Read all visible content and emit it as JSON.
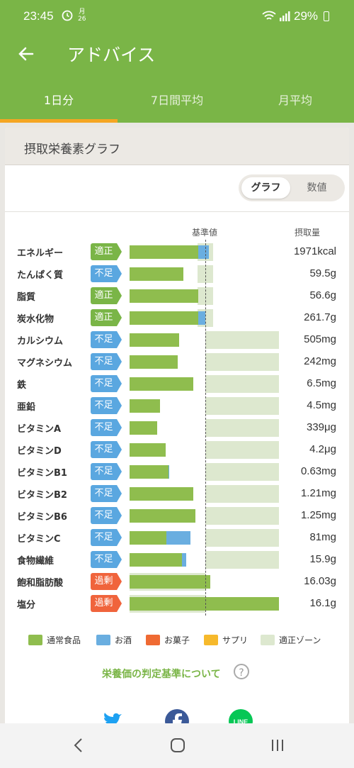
{
  "status": {
    "time": "23:45",
    "calendar_top": "月",
    "calendar_day": "26",
    "battery": "29%"
  },
  "appbar": {
    "title": "アドバイス"
  },
  "tabs": [
    {
      "label": "1日分",
      "active": true
    },
    {
      "label": "7日間平均",
      "active": false
    },
    {
      "label": "月平均",
      "active": false
    }
  ],
  "card": {
    "title": "摂取栄養素グラフ",
    "toggle": {
      "graph": "グラフ",
      "numeric": "数値",
      "selected": "グラフ"
    },
    "header": {
      "reference": "基準値",
      "intake": "摂取量"
    }
  },
  "nutrients": [
    {
      "name": "エネルギー",
      "status": "適正",
      "value": "1971kcal",
      "green": 0.91,
      "blue": 0.14,
      "zone": [
        0.9,
        1.1
      ]
    },
    {
      "name": "たんぱく質",
      "status": "不足",
      "value": "59.5g",
      "green": 0.71,
      "blue": 0,
      "zone": [
        0.9,
        1.1
      ]
    },
    {
      "name": "脂質",
      "status": "適正",
      "value": "56.6g",
      "green": 0.91,
      "blue": 0,
      "zone": [
        0.9,
        1.1
      ]
    },
    {
      "name": "炭水化物",
      "status": "適正",
      "value": "261.7g",
      "green": 0.91,
      "blue": 0.09,
      "zone": [
        0.9,
        1.1
      ]
    },
    {
      "name": "カルシウム",
      "status": "不足",
      "value": "505mg",
      "green": 0.65,
      "blue": 0,
      "zone": [
        1.0,
        1.97
      ]
    },
    {
      "name": "マグネシウム",
      "status": "不足",
      "value": "242mg",
      "green": 0.64,
      "blue": 0,
      "zone": [
        1.0,
        1.97
      ]
    },
    {
      "name": "鉄",
      "status": "不足",
      "value": "6.5mg",
      "green": 0.84,
      "blue": 0,
      "zone": [
        1.0,
        1.97
      ]
    },
    {
      "name": "亜鉛",
      "status": "不足",
      "value": "4.5mg",
      "green": 0.4,
      "blue": 0,
      "zone": [
        1.0,
        1.97
      ]
    },
    {
      "name": "ビタミンA",
      "status": "不足",
      "value": "339μg",
      "green": 0.36,
      "blue": 0,
      "zone": [
        1.0,
        1.97
      ]
    },
    {
      "name": "ビタミンD",
      "status": "不足",
      "value": "4.2μg",
      "green": 0.48,
      "blue": 0,
      "zone": [
        1.0,
        1.97
      ]
    },
    {
      "name": "ビタミンB1",
      "status": "不足",
      "value": "0.63mg",
      "green": 0.51,
      "blue": 0.01,
      "zone": [
        1.0,
        1.97
      ]
    },
    {
      "name": "ビタミンB2",
      "status": "不足",
      "value": "1.21mg",
      "green": 0.84,
      "blue": 0,
      "zone": [
        1.0,
        1.97
      ]
    },
    {
      "name": "ビタミンB6",
      "status": "不足",
      "value": "1.25mg",
      "green": 0.87,
      "blue": 0,
      "zone": [
        1.0,
        1.97
      ]
    },
    {
      "name": "ビタミンC",
      "status": "不足",
      "value": "81mg",
      "green": 0.49,
      "blue": 0.31,
      "zone": [
        1.0,
        1.97
      ]
    },
    {
      "name": "食物繊維",
      "status": "不足",
      "value": "15.9g",
      "green": 0.69,
      "blue": 0.06,
      "zone": [
        1.0,
        1.97
      ]
    },
    {
      "name": "飽和脂肪酸",
      "status": "過剰",
      "value": "16.03g",
      "green": 1.07,
      "blue": 0,
      "zone": [
        0,
        1.0
      ]
    },
    {
      "name": "塩分",
      "status": "過剰",
      "value": "16.1g",
      "green": 1.97,
      "blue": 0,
      "zone": [
        0,
        1.0
      ]
    }
  ],
  "status_colors": {
    "適正": "#7ab547",
    "不足": "#5aa7e0",
    "過剰": "#f0643c"
  },
  "legend": [
    {
      "label": "通常食品",
      "color": "#8fbd4e"
    },
    {
      "label": "お酒",
      "color": "#6aaee0"
    },
    {
      "label": "お菓子",
      "color": "#ef6a33"
    },
    {
      "label": "サプリ",
      "color": "#f6b92c"
    },
    {
      "label": "適正ゾーン",
      "color": "#dde8cf"
    }
  ],
  "help_link": "栄養価の判定基準について",
  "social_icons": [
    "twitter-icon",
    "facebook-icon",
    "line-icon"
  ]
}
